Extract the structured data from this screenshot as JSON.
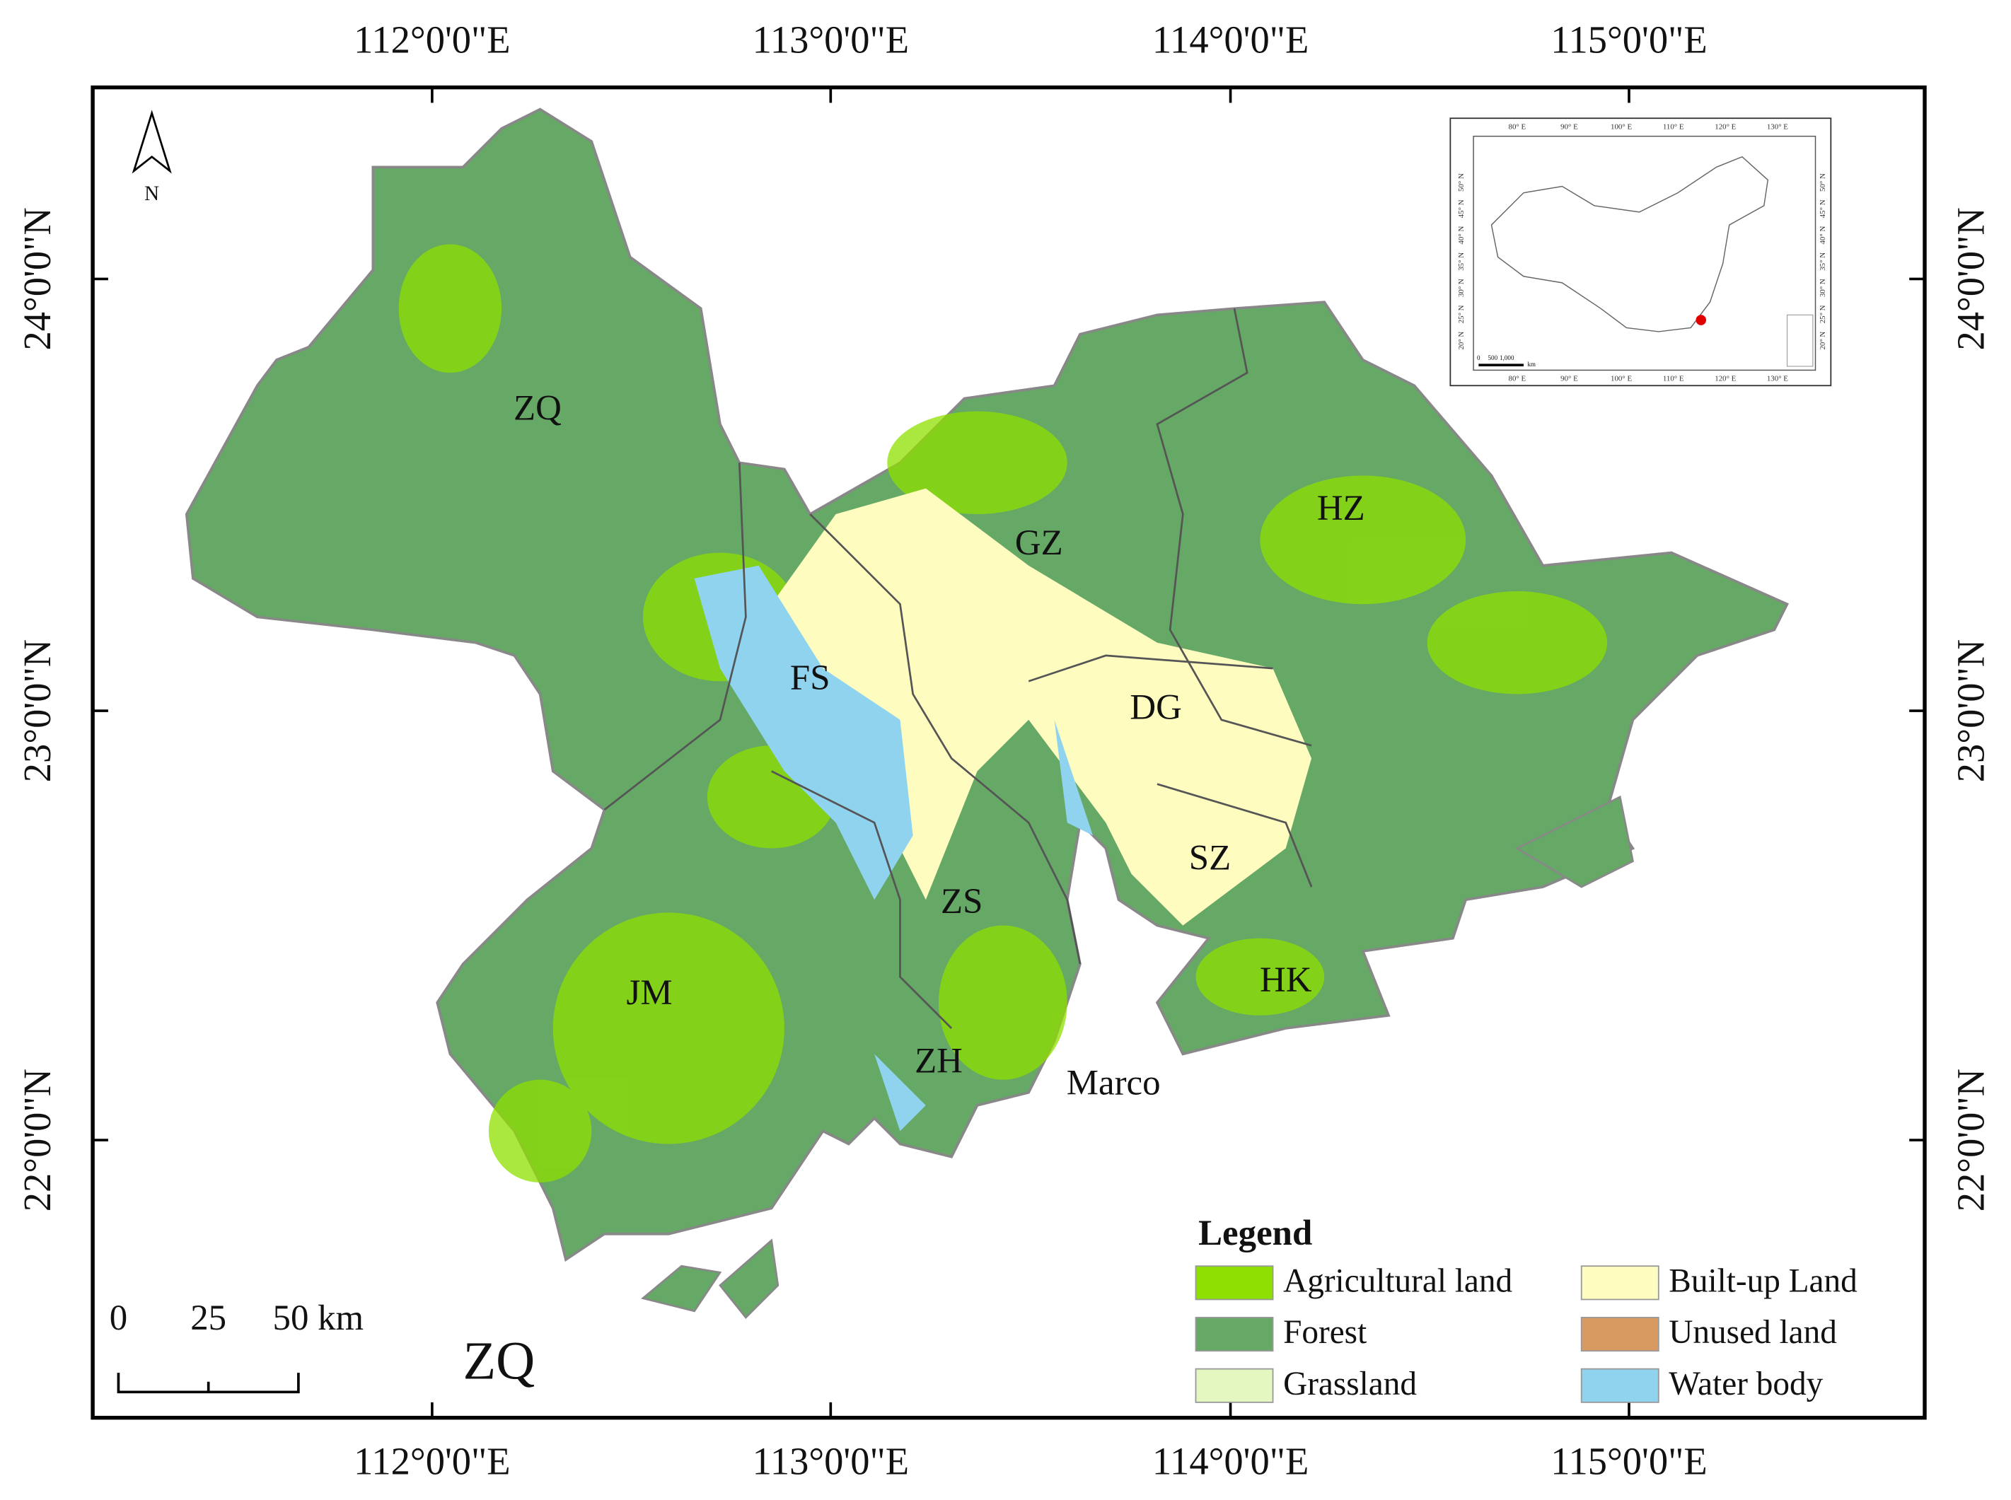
{
  "map": {
    "lon_ticks": [
      "112°0'0\"E",
      "113°0'0\"E",
      "114°0'0\"E",
      "115°0'0\"E"
    ],
    "lat_ticks": [
      "24°0'0\"N",
      "23°0'0\"N",
      "22°0'0\"N"
    ],
    "north_arrow": "N",
    "regions": [
      "ZQ",
      "GZ",
      "HZ",
      "FS",
      "DG",
      "SZ",
      "ZS",
      "JM",
      "HK",
      "ZH",
      "Marco"
    ],
    "scale_bar": [
      "0",
      "25",
      "50 km"
    ],
    "corner_label": "ZQ",
    "legend": {
      "title": "Legend",
      "items": [
        {
          "label": "Agricultural land",
          "color": "#8ee000"
        },
        {
          "label": "Built-up Land",
          "color": "#fffcc0"
        },
        {
          "label": "Forest",
          "color": "#66a866"
        },
        {
          "label": "Unused land",
          "color": "#d99a62"
        },
        {
          "label": "Grassland",
          "color": "#e4f7c0"
        },
        {
          "label": "Water body",
          "color": "#8fd3ef"
        }
      ]
    },
    "inset": {
      "lon_labels": [
        "80° E",
        "90° E",
        "100° E",
        "110° E",
        "120° E",
        "130° E"
      ],
      "lat_labels": [
        "20° N",
        "25° N",
        "30° N",
        "35° N",
        "40° N",
        "45° N",
        "50° N"
      ],
      "scale_labels": [
        "0",
        "500",
        "1,000"
      ],
      "scale_unit": "km"
    }
  }
}
